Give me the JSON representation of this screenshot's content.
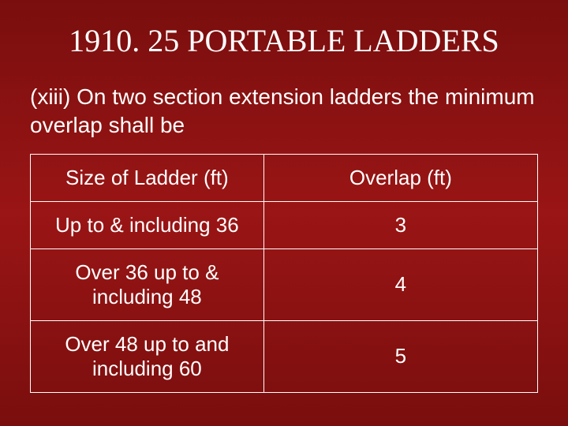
{
  "title": "1910. 25 PORTABLE LADDERS",
  "body_text": "(xiii) On two section extension ladders the minimum overlap shall be",
  "table": {
    "type": "table",
    "background_color": "transparent",
    "border_color": "#ffffff",
    "text_color": "#ffffff",
    "font_family": "Verdana",
    "header_fontsize": 26,
    "cell_fontsize": 26,
    "columns": [
      {
        "label": "Size of Ladder (ft)",
        "align": "center",
        "width_pct": 46
      },
      {
        "label": "Overlap (ft)",
        "align": "center",
        "width_pct": 54
      }
    ],
    "rows": [
      {
        "size": "Up to & including 36",
        "overlap": "3"
      },
      {
        "size": "Over 36 up to & including 48",
        "overlap": "4"
      },
      {
        "size": "Over 48 up to and including 60",
        "overlap": "5"
      }
    ]
  },
  "colors": {
    "background_top": "#7a0e0e",
    "background_mid": "#9a1515",
    "title_color": "#ffffff",
    "body_color": "#ffffff"
  },
  "typography": {
    "title_font": "Times New Roman",
    "title_fontsize": 40,
    "body_font": "Verdana",
    "body_fontsize": 28
  }
}
